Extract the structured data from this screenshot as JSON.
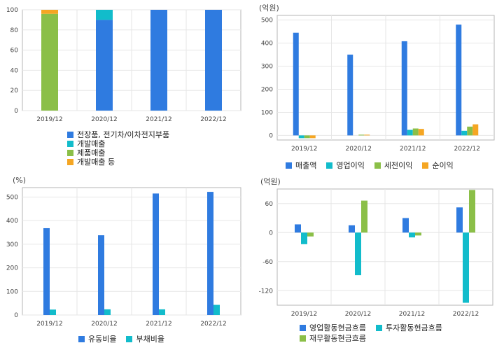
{
  "colors": {
    "blue": "#2f7be0",
    "cyan": "#12bccb",
    "green": "#8bbf48",
    "orange": "#f5a623",
    "grid": "#e6e6e6",
    "axis": "#9a9a9a"
  },
  "chart_data": [
    {
      "type": "bar",
      "stacked": true,
      "categories": [
        "2019/12",
        "2020/12",
        "2021/12",
        "2022/12"
      ],
      "ylim": [
        0,
        100
      ],
      "yticks": [
        0,
        20,
        40,
        60,
        80,
        100
      ],
      "series": [
        {
          "name": "전장품, 전기차/이차전지부품",
          "color": "#2f7be0",
          "values": [
            0,
            90,
            100,
            100
          ]
        },
        {
          "name": "개발매출",
          "color": "#12bccb",
          "values": [
            0,
            10,
            0,
            0
          ]
        },
        {
          "name": "제품매출",
          "color": "#8bbf48",
          "values": [
            96,
            0,
            0,
            0
          ]
        },
        {
          "name": "개발매출 등",
          "color": "#f5a623",
          "values": [
            4,
            0,
            0,
            0
          ]
        }
      ],
      "grid": true,
      "legend": "bottom"
    },
    {
      "type": "bar",
      "unit": "(억원)",
      "categories": [
        "2019/12",
        "2020/12",
        "2021/12",
        "2022/12"
      ],
      "ylim": [
        -20,
        520
      ],
      "yticks": [
        0,
        100,
        200,
        300,
        400,
        500
      ],
      "series": [
        {
          "name": "매출액",
          "color": "#2f7be0",
          "values": [
            445,
            350,
            408,
            480
          ]
        },
        {
          "name": "영업이익",
          "color": "#12bccb",
          "values": [
            -12,
            0,
            24,
            20
          ]
        },
        {
          "name": "세전이익",
          "color": "#8bbf48",
          "values": [
            -12,
            3,
            30,
            38
          ]
        },
        {
          "name": "순이익",
          "color": "#f5a623",
          "values": [
            -12,
            3,
            28,
            48
          ]
        }
      ],
      "grid": true,
      "legend": "bottom"
    },
    {
      "type": "bar",
      "unit": "(%)",
      "categories": [
        "2019/12",
        "2020/12",
        "2021/12",
        "2022/12"
      ],
      "ylim": [
        0,
        540
      ],
      "yticks": [
        0,
        100,
        200,
        300,
        400,
        500
      ],
      "series": [
        {
          "name": "유동비율",
          "color": "#2f7be0",
          "values": [
            368,
            338,
            515,
            522
          ]
        },
        {
          "name": "부채비율",
          "color": "#12bccb",
          "values": [
            23,
            24,
            24,
            43
          ]
        }
      ],
      "grid": true,
      "legend": "bottom"
    },
    {
      "type": "bar",
      "unit": "(억원)",
      "categories": [
        "2019/12",
        "2020/12",
        "2021/12",
        "2022/12"
      ],
      "ylim": [
        -150,
        90
      ],
      "yticks": [
        -120,
        -60,
        0,
        60
      ],
      "series": [
        {
          "name": "영업활동현금흐름",
          "color": "#2f7be0",
          "values": [
            17,
            15,
            30,
            52
          ]
        },
        {
          "name": "투자활동현금흐름",
          "color": "#12bccb",
          "values": [
            -24,
            -88,
            -10,
            -145
          ]
        },
        {
          "name": "재무활동현금흐름",
          "color": "#8bbf48",
          "values": [
            -8,
            66,
            -6,
            88
          ]
        }
      ],
      "grid": true,
      "legend": "bottom"
    }
  ]
}
